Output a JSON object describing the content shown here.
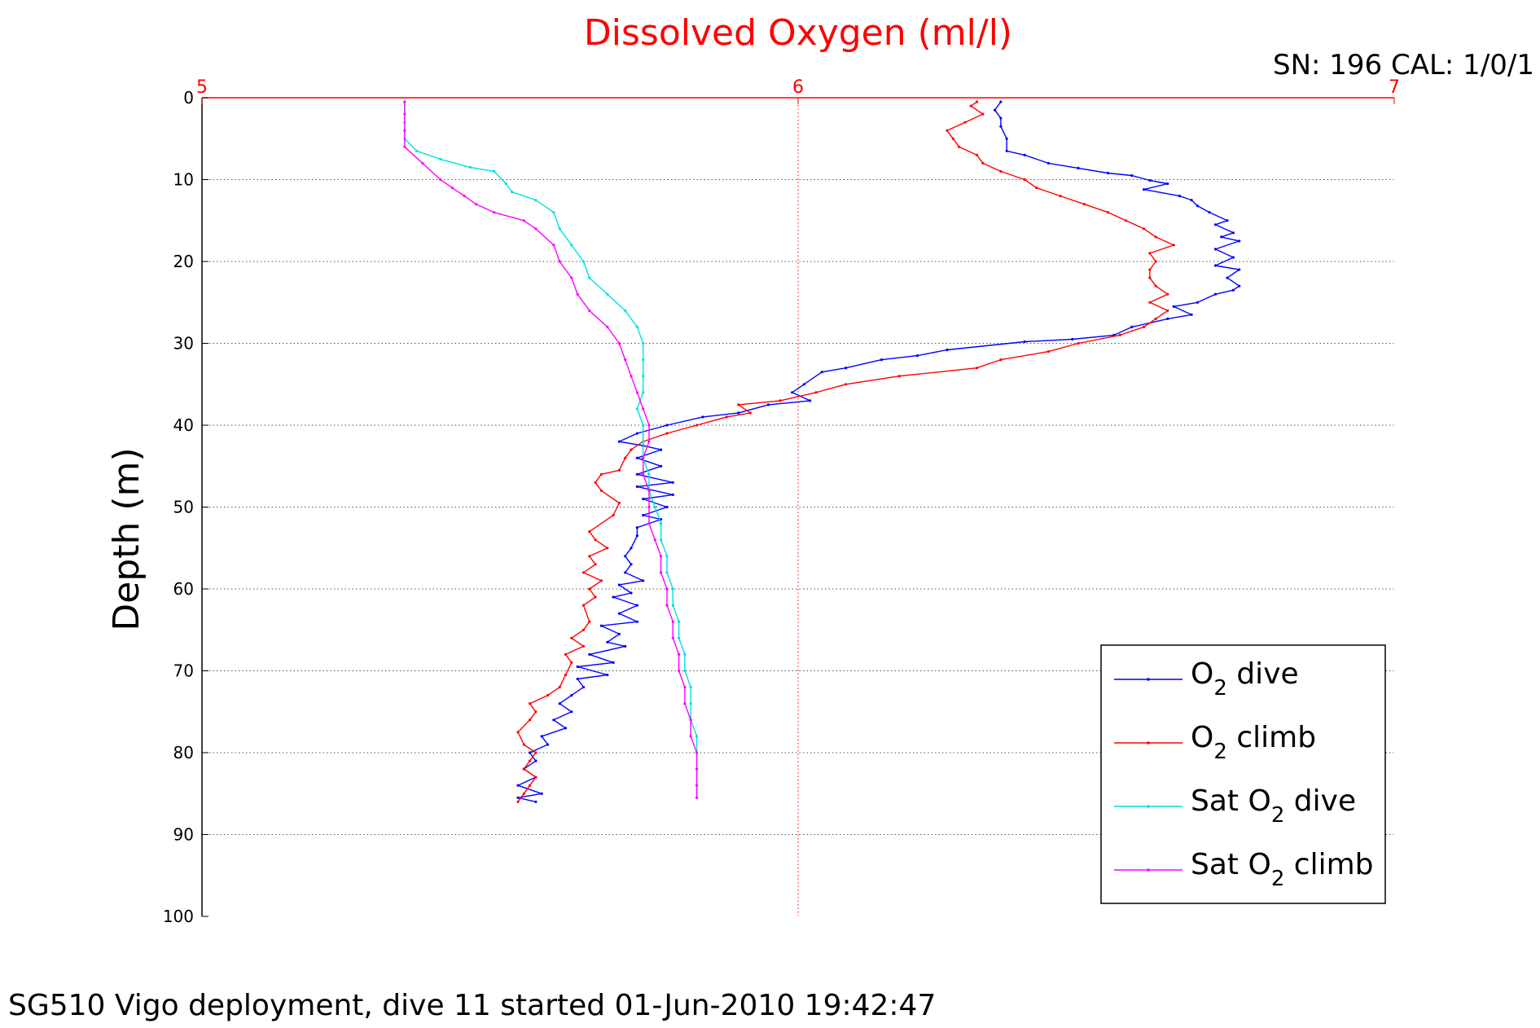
{
  "chart_data": {
    "type": "line",
    "title": "Dissolved Oxygen (ml/l)",
    "corner_text": "SN: 196  CAL: 1/0/1",
    "ylabel": "Depth (m)",
    "footer": "SG510 Vigo deployment, dive 11 started 01-Jun-2010 19:42:47",
    "xlim": [
      5,
      7
    ],
    "ylim": [
      0,
      100
    ],
    "y_reversed": true,
    "x_axis_position": "top",
    "x_ticks": [
      "5",
      "6",
      "7"
    ],
    "y_ticks": [
      "0",
      "10",
      "20",
      "30",
      "40",
      "50",
      "60",
      "70",
      "80",
      "90",
      "100"
    ],
    "grid": true,
    "legend_position": "bottom-right",
    "series": [
      {
        "name": "O2 dive",
        "legend": {
          "pre": "O",
          "sub": "2",
          "post": " dive"
        },
        "color": "#0000ff",
        "points": [
          [
            6.34,
            0.5
          ],
          [
            6.33,
            1.5
          ],
          [
            6.34,
            2.5
          ],
          [
            6.34,
            3.5
          ],
          [
            6.35,
            5
          ],
          [
            6.35,
            6.5
          ],
          [
            6.38,
            7
          ],
          [
            6.42,
            8
          ],
          [
            6.47,
            8.6
          ],
          [
            6.52,
            9.2
          ],
          [
            6.56,
            9.5
          ],
          [
            6.59,
            10.1
          ],
          [
            6.62,
            10.5
          ],
          [
            6.58,
            11.2
          ],
          [
            6.64,
            12
          ],
          [
            6.66,
            12.5
          ],
          [
            6.67,
            13.2
          ],
          [
            6.69,
            14
          ],
          [
            6.72,
            15
          ],
          [
            6.7,
            15.5
          ],
          [
            6.73,
            16.5
          ],
          [
            6.71,
            17
          ],
          [
            6.74,
            17.5
          ],
          [
            6.7,
            18.5
          ],
          [
            6.73,
            19.5
          ],
          [
            6.7,
            20.5
          ],
          [
            6.74,
            21
          ],
          [
            6.72,
            22
          ],
          [
            6.74,
            23
          ],
          [
            6.73,
            23.5
          ],
          [
            6.7,
            24
          ],
          [
            6.67,
            25
          ],
          [
            6.63,
            25.5
          ],
          [
            6.66,
            26.5
          ],
          [
            6.62,
            27
          ],
          [
            6.56,
            28
          ],
          [
            6.53,
            29
          ],
          [
            6.46,
            29.5
          ],
          [
            6.38,
            29.8
          ],
          [
            6.25,
            30.8
          ],
          [
            6.2,
            31.5
          ],
          [
            6.14,
            32
          ],
          [
            6.08,
            33
          ],
          [
            6.04,
            33.5
          ],
          [
            6.01,
            35
          ],
          [
            5.99,
            36
          ],
          [
            6.02,
            37
          ],
          [
            5.95,
            37.5
          ],
          [
            5.9,
            38.5
          ],
          [
            5.84,
            39
          ],
          [
            5.78,
            40
          ],
          [
            5.73,
            41
          ],
          [
            5.7,
            42
          ],
          [
            5.74,
            42.5
          ],
          [
            5.77,
            43
          ],
          [
            5.73,
            44
          ],
          [
            5.77,
            45
          ],
          [
            5.73,
            46
          ],
          [
            5.79,
            47
          ],
          [
            5.73,
            47.5
          ],
          [
            5.79,
            48.5
          ],
          [
            5.74,
            49
          ],
          [
            5.78,
            50
          ],
          [
            5.74,
            51
          ],
          [
            5.77,
            51.5
          ],
          [
            5.73,
            52.5
          ],
          [
            5.73,
            53.5
          ],
          [
            5.72,
            55
          ],
          [
            5.71,
            56
          ],
          [
            5.72,
            57
          ],
          [
            5.71,
            58
          ],
          [
            5.74,
            59
          ],
          [
            5.7,
            59.5
          ],
          [
            5.72,
            60.5
          ],
          [
            5.69,
            61
          ],
          [
            5.73,
            62
          ],
          [
            5.7,
            63
          ],
          [
            5.73,
            64
          ],
          [
            5.67,
            64.5
          ],
          [
            5.7,
            65.5
          ],
          [
            5.68,
            66.5
          ],
          [
            5.71,
            67
          ],
          [
            5.65,
            68
          ],
          [
            5.69,
            69
          ],
          [
            5.63,
            69.5
          ],
          [
            5.68,
            70.5
          ],
          [
            5.63,
            71
          ],
          [
            5.64,
            72
          ],
          [
            5.62,
            73
          ],
          [
            5.6,
            74
          ],
          [
            5.62,
            75
          ],
          [
            5.59,
            76
          ],
          [
            5.61,
            77
          ],
          [
            5.57,
            78
          ],
          [
            5.58,
            79
          ],
          [
            5.55,
            80
          ],
          [
            5.56,
            81
          ],
          [
            5.54,
            82
          ],
          [
            5.56,
            83
          ],
          [
            5.53,
            84
          ],
          [
            5.57,
            85
          ],
          [
            5.53,
            85.5
          ],
          [
            5.56,
            86
          ]
        ]
      },
      {
        "name": "O2 climb",
        "legend": {
          "pre": "O",
          "sub": "2",
          "post": " climb"
        },
        "color": "#ff0000",
        "points": [
          [
            5.53,
            86
          ],
          [
            5.54,
            85
          ],
          [
            5.55,
            84
          ],
          [
            5.56,
            83
          ],
          [
            5.54,
            82
          ],
          [
            5.55,
            81
          ],
          [
            5.56,
            80
          ],
          [
            5.54,
            79
          ],
          [
            5.53,
            77.5
          ],
          [
            5.55,
            76
          ],
          [
            5.56,
            75
          ],
          [
            5.55,
            74
          ],
          [
            5.58,
            73
          ],
          [
            5.6,
            72
          ],
          [
            5.61,
            70.5
          ],
          [
            5.62,
            69
          ],
          [
            5.61,
            68
          ],
          [
            5.64,
            67
          ],
          [
            5.62,
            66
          ],
          [
            5.64,
            65
          ],
          [
            5.65,
            64
          ],
          [
            5.64,
            62
          ],
          [
            5.66,
            61
          ],
          [
            5.65,
            60
          ],
          [
            5.67,
            59
          ],
          [
            5.64,
            58
          ],
          [
            5.66,
            57
          ],
          [
            5.65,
            56
          ],
          [
            5.68,
            55
          ],
          [
            5.66,
            54
          ],
          [
            5.65,
            53
          ],
          [
            5.69,
            51
          ],
          [
            5.7,
            49.5
          ],
          [
            5.67,
            48
          ],
          [
            5.66,
            47
          ],
          [
            5.67,
            46
          ],
          [
            5.7,
            45.5
          ],
          [
            5.71,
            44
          ],
          [
            5.72,
            43
          ],
          [
            5.74,
            42
          ],
          [
            5.78,
            41
          ],
          [
            5.83,
            40
          ],
          [
            5.88,
            39
          ],
          [
            5.92,
            38.5
          ],
          [
            5.9,
            37.5
          ],
          [
            5.97,
            37
          ],
          [
            6.03,
            36
          ],
          [
            6.08,
            35
          ],
          [
            6.17,
            34
          ],
          [
            6.3,
            33
          ],
          [
            6.34,
            32
          ],
          [
            6.42,
            31
          ],
          [
            6.47,
            30
          ],
          [
            6.54,
            29
          ],
          [
            6.58,
            28
          ],
          [
            6.6,
            27
          ],
          [
            6.62,
            26
          ],
          [
            6.59,
            25
          ],
          [
            6.62,
            24
          ],
          [
            6.6,
            23
          ],
          [
            6.59,
            22
          ],
          [
            6.59,
            21
          ],
          [
            6.6,
            20
          ],
          [
            6.59,
            19
          ],
          [
            6.63,
            18
          ],
          [
            6.6,
            17
          ],
          [
            6.58,
            16
          ],
          [
            6.55,
            15
          ],
          [
            6.52,
            14
          ],
          [
            6.48,
            13
          ],
          [
            6.44,
            12
          ],
          [
            6.4,
            11
          ],
          [
            6.38,
            10
          ],
          [
            6.34,
            9
          ],
          [
            6.31,
            8
          ],
          [
            6.3,
            7
          ],
          [
            6.27,
            6
          ],
          [
            6.26,
            5
          ],
          [
            6.25,
            4
          ],
          [
            6.28,
            3
          ],
          [
            6.31,
            2
          ],
          [
            6.29,
            1
          ],
          [
            6.3,
            0.5
          ]
        ]
      },
      {
        "name": "Sat O2 dive",
        "legend": {
          "pre": "Sat O",
          "sub": "2",
          "post": " dive"
        },
        "color": "#00e0e0",
        "points": [
          [
            5.34,
            0.5
          ],
          [
            5.34,
            3
          ],
          [
            5.34,
            5
          ],
          [
            5.36,
            6.5
          ],
          [
            5.4,
            7.5
          ],
          [
            5.45,
            8.5
          ],
          [
            5.49,
            9
          ],
          [
            5.51,
            10.5
          ],
          [
            5.52,
            11.5
          ],
          [
            5.56,
            12.5
          ],
          [
            5.59,
            14
          ],
          [
            5.6,
            16
          ],
          [
            5.62,
            18
          ],
          [
            5.64,
            20
          ],
          [
            5.65,
            22
          ],
          [
            5.68,
            24
          ],
          [
            5.71,
            26
          ],
          [
            5.73,
            28
          ],
          [
            5.74,
            30
          ],
          [
            5.74,
            32
          ],
          [
            5.74,
            34
          ],
          [
            5.74,
            36
          ],
          [
            5.73,
            38
          ],
          [
            5.74,
            40
          ],
          [
            5.74,
            42
          ],
          [
            5.74,
            44
          ],
          [
            5.75,
            46
          ],
          [
            5.75,
            48
          ],
          [
            5.76,
            50
          ],
          [
            5.77,
            52
          ],
          [
            5.77,
            54
          ],
          [
            5.78,
            56
          ],
          [
            5.78,
            58
          ],
          [
            5.79,
            60
          ],
          [
            5.79,
            62
          ],
          [
            5.8,
            64
          ],
          [
            5.8,
            66
          ],
          [
            5.81,
            68
          ],
          [
            5.81,
            70
          ],
          [
            5.82,
            72
          ],
          [
            5.82,
            74
          ],
          [
            5.82,
            76
          ],
          [
            5.83,
            78
          ],
          [
            5.83,
            80
          ],
          [
            5.83,
            82
          ],
          [
            5.83,
            84
          ],
          [
            5.83,
            85.5
          ]
        ]
      },
      {
        "name": "Sat O2 climb",
        "legend": {
          "pre": "Sat O",
          "sub": "2",
          "post": " climb"
        },
        "color": "#ff00ff",
        "points": [
          [
            5.83,
            85.5
          ],
          [
            5.83,
            84
          ],
          [
            5.83,
            82
          ],
          [
            5.83,
            80
          ],
          [
            5.82,
            78
          ],
          [
            5.82,
            76
          ],
          [
            5.81,
            74
          ],
          [
            5.81,
            72
          ],
          [
            5.8,
            70
          ],
          [
            5.8,
            68
          ],
          [
            5.79,
            66
          ],
          [
            5.79,
            64
          ],
          [
            5.78,
            62
          ],
          [
            5.78,
            60
          ],
          [
            5.77,
            58
          ],
          [
            5.77,
            56
          ],
          [
            5.76,
            54
          ],
          [
            5.75,
            52
          ],
          [
            5.75,
            50
          ],
          [
            5.75,
            48
          ],
          [
            5.74,
            46
          ],
          [
            5.74,
            44
          ],
          [
            5.75,
            42
          ],
          [
            5.75,
            40
          ],
          [
            5.74,
            38
          ],
          [
            5.73,
            36
          ],
          [
            5.72,
            34
          ],
          [
            5.71,
            32
          ],
          [
            5.7,
            30
          ],
          [
            5.68,
            28
          ],
          [
            5.65,
            26
          ],
          [
            5.63,
            24
          ],
          [
            5.62,
            22
          ],
          [
            5.6,
            20
          ],
          [
            5.59,
            18
          ],
          [
            5.56,
            16
          ],
          [
            5.54,
            15
          ],
          [
            5.49,
            14
          ],
          [
            5.46,
            13
          ],
          [
            5.44,
            12
          ],
          [
            5.42,
            11
          ],
          [
            5.4,
            10
          ],
          [
            5.37,
            8
          ],
          [
            5.34,
            6
          ],
          [
            5.34,
            4
          ],
          [
            5.34,
            2
          ],
          [
            5.34,
            0.5
          ]
        ]
      }
    ]
  }
}
